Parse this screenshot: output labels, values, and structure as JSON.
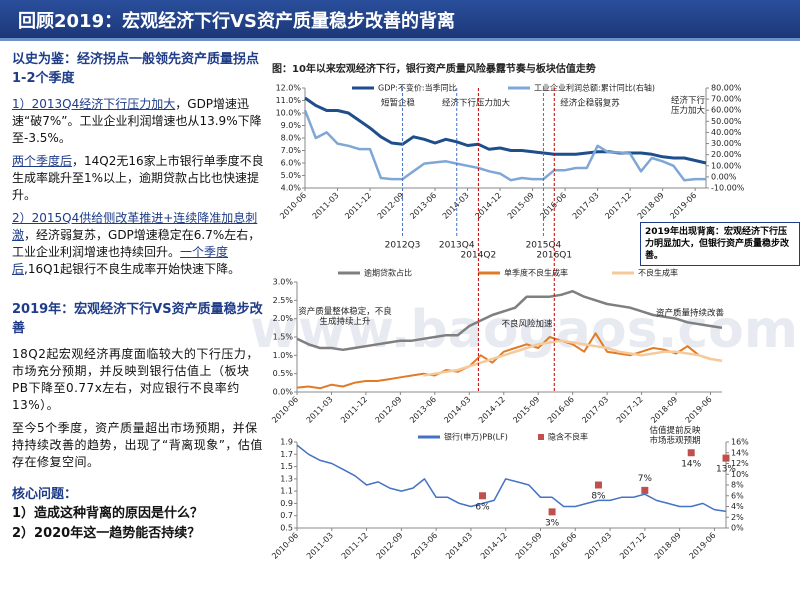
{
  "title": "回顾2019：宏观经济下行VS资产质量稳步改善的背离",
  "left": {
    "heading1": "以史为鉴：经济拐点一般领先资产质量拐点1-2个季度",
    "p1_head": "1）2013Q4经济下行压力加大",
    "p1_body": "，GDP增速迅速“破7%”。工业企业利润增速也从13.9%下降至-3.5%。",
    "p2_head": "两个季度后",
    "p2_body": "，14Q2无16家上市银行单季度不良生成率跳升至1%以上，逾期贷款占比也快速提升。",
    "p3_head": "2）2015Q4供给侧改革推进+连续降准加息刺激",
    "p3_body": "，经济弱复苏，GDP增速稳定在6.7%左右，工业企业利润增速也持续回升。",
    "p3_head2": "一个季度后",
    "p3_body2": ",16Q1起银行不良生成率开始快速下降。",
    "heading2": "2019年：宏观经济下行VS资产质量稳步改善",
    "p4": "18Q2起宏观经济再度面临较大的下行压力，市场充分预期，并反映到银行估值上（板块PB下降至0.77x左右，对应银行不良率约13%）。",
    "p5": "至今5个季度，资产质量超出市场预期，并保持持续改善的趋势，出现了“背离现象”，估值存在修复空间。",
    "heading3": "核心问题：",
    "q1": "1）造成这种背离的原因是什么？",
    "q2": "2）2020年这一趋势能否持续？"
  },
  "watermark": "www.baogaos.com",
  "figure_title": "图：10年以来宏观经济下行，银行资产质量风险暴露节奏与板块估值走势",
  "callout": "2019年出现背离：宏观经济下行压力明显加大，但银行资产质量稳步改善。",
  "charts": [
    {
      "type": "line",
      "categories": [
        "2010-06",
        null,
        null,
        "2011-03",
        null,
        null,
        "2011-12",
        null,
        null,
        "2012-09",
        null,
        null,
        "2013-06",
        null,
        null,
        "2014-03",
        null,
        null,
        "2014-12",
        null,
        null,
        "2015-09",
        null,
        null,
        "2016-06",
        null,
        null,
        "2017-03",
        null,
        null,
        "2017-12",
        null,
        null,
        "2018-09",
        null,
        null,
        "2019-06",
        null
      ],
      "ylim": [
        4,
        12
      ],
      "yticks": [
        {
          "value": 4,
          "label": "4.0%"
        },
        {
          "value": 5,
          "label": "5.0%"
        },
        {
          "value": 6,
          "label": "6.0%"
        },
        {
          "value": 7,
          "label": "7.0%"
        },
        {
          "value": 8,
          "label": "8.0%"
        },
        {
          "value": 9,
          "label": "9.0%"
        },
        {
          "value": 10,
          "label": "10.0%"
        },
        {
          "value": 11,
          "label": "11.0%"
        },
        {
          "value": 12,
          "label": "12.0%"
        }
      ],
      "y2lim": [
        -10,
        80
      ],
      "y2ticks": [
        {
          "value": -10,
          "label": "-10.00%"
        },
        {
          "value": 0,
          "label": "0.00%"
        },
        {
          "value": 10,
          "label": "10.00%"
        },
        {
          "value": 20,
          "label": "20.00%"
        },
        {
          "value": 30,
          "label": "30.00%"
        },
        {
          "value": 40,
          "label": "40.00%"
        },
        {
          "value": 50,
          "label": "50.00%"
        },
        {
          "value": 60,
          "label": "60.00%"
        },
        {
          "value": 70,
          "label": "70.00%"
        },
        {
          "value": 80,
          "label": "80.00%"
        }
      ],
      "series": [
        {
          "name": "GDP:不变价:当季同比",
          "color": "#1f4e8c",
          "width": 3,
          "values": [
            11.2,
            10.6,
            10.2,
            10.2,
            10.0,
            9.4,
            8.8,
            8.1,
            7.6,
            7.5,
            8.1,
            7.9,
            7.6,
            7.9,
            7.7,
            7.4,
            7.5,
            7.1,
            7.2,
            7.0,
            7.0,
            6.9,
            6.8,
            6.7,
            6.7,
            6.7,
            6.8,
            6.9,
            6.9,
            6.8,
            6.8,
            6.8,
            6.7,
            6.5,
            6.4,
            6.4,
            6.2,
            6.0
          ]
        },
        {
          "name": "工业企业利润总额:累计同比(右轴)",
          "color": "#7fa7d6",
          "width": 2.5,
          "axis": "y2",
          "values": [
            60,
            35,
            40,
            30,
            28,
            25,
            25,
            -1,
            -2,
            -2,
            5,
            12,
            13,
            14,
            12,
            10,
            8,
            5,
            3,
            -3,
            -1,
            -2,
            -2,
            6,
            6,
            8,
            8,
            28,
            22,
            22,
            21,
            5,
            17,
            14,
            10,
            -3,
            -2,
            -2
          ]
        }
      ],
      "annotations": [
        "短暂企稳",
        "经济下行压力加大",
        "经济企稳弱复苏",
        "经济下行压力加大"
      ],
      "vlines": [
        {
          "label": "2012Q3",
          "color": "#4472c4"
        },
        {
          "label": "2013Q4",
          "color": "#4472c4"
        },
        {
          "label": "2015Q4",
          "color": "#4472c4"
        },
        {
          "label": "2014Q2",
          "color": "#c00000"
        },
        {
          "label": "2016Q1",
          "color": "#c00000"
        }
      ]
    },
    {
      "type": "line",
      "categories": [
        "2010-06",
        null,
        null,
        "2011-03",
        null,
        null,
        "2011-12",
        null,
        null,
        "2012-09",
        null,
        null,
        "2013-06",
        null,
        null,
        "2014-03",
        null,
        null,
        "2014-12",
        null,
        null,
        "2015-09",
        null,
        null,
        "2016-06",
        null,
        null,
        "2017-03",
        null,
        null,
        "2017-12",
        null,
        null,
        "2018-09",
        null,
        null,
        "2019-06",
        null
      ],
      "ylim": [
        0,
        3
      ],
      "yticks": [
        {
          "value": 0,
          "label": "0.0%"
        },
        {
          "value": 0.5,
          "label": "0.5%"
        },
        {
          "value": 1,
          "label": "1.0%"
        },
        {
          "value": 1.5,
          "label": "1.5%"
        },
        {
          "value": 2,
          "label": "2.0%"
        },
        {
          "value": 2.5,
          "label": "2.5%"
        },
        {
          "value": 3,
          "label": "3.0%"
        }
      ],
      "series": [
        {
          "name": "逾期贷款占比",
          "color": "#7f7f7f",
          "width": 2.5,
          "values": [
            1.45,
            1.3,
            1.2,
            1.2,
            1.15,
            1.2,
            1.25,
            1.3,
            1.35,
            1.4,
            1.4,
            1.45,
            1.5,
            1.55,
            1.55,
            1.8,
            1.95,
            2.1,
            2.2,
            2.3,
            2.6,
            2.6,
            2.6,
            2.65,
            2.75,
            2.6,
            2.5,
            2.4,
            2.35,
            2.3,
            2.2,
            2.1,
            2.05,
            2.0,
            1.9,
            1.85,
            1.8,
            1.75
          ]
        },
        {
          "name": "单季度不良生成率",
          "color": "#e07b28",
          "width": 2,
          "values": [
            0.12,
            0.15,
            0.1,
            0.2,
            0.15,
            0.25,
            0.3,
            0.3,
            0.35,
            0.4,
            0.45,
            0.5,
            0.45,
            0.6,
            0.55,
            0.7,
            1.0,
            0.8,
            1.1,
            1.2,
            1.3,
            1.2,
            1.5,
            1.4,
            1.3,
            1.1,
            1.6,
            1.1,
            1.05,
            1.0,
            1.1,
            1.2,
            1.15,
            1.05,
            1.25,
            1.0,
            0.9,
            0.85
          ]
        },
        {
          "name": "不良生成率",
          "color": "#f6c99a",
          "width": 2.5,
          "values": [
            null,
            null,
            null,
            null,
            null,
            null,
            null,
            null,
            null,
            null,
            null,
            0.45,
            0.5,
            0.55,
            0.6,
            0.7,
            0.8,
            0.9,
            1.0,
            1.1,
            1.2,
            1.3,
            1.35,
            1.4,
            1.35,
            1.3,
            1.25,
            1.2,
            1.1,
            1.05,
            1.0,
            1.05,
            1.1,
            1.1,
            1.05,
            1.0,
            0.9,
            0.85
          ]
        }
      ],
      "annotations": [
        "资产质量整体稳定，不良生成持续上升",
        "不良风险加速",
        "资产质量持续改善"
      ]
    },
    {
      "type": "line",
      "categories": [
        "2010-06",
        null,
        null,
        "2011-03",
        null,
        null,
        "2011-12",
        null,
        null,
        "2012-09",
        null,
        null,
        "2013-06",
        null,
        null,
        "2014-03",
        null,
        null,
        "2014-12",
        null,
        null,
        "2015-09",
        null,
        null,
        "2016-06",
        null,
        null,
        "2017-03",
        null,
        null,
        "2017-12",
        null,
        null,
        "2018-09",
        null,
        null,
        "2019-06",
        null
      ],
      "ylim": [
        0.5,
        1.9
      ],
      "yticks": [
        0.5,
        0.7,
        0.9,
        1.1,
        1.3,
        1.5,
        1.7,
        1.9
      ],
      "y2lim": [
        0,
        16
      ],
      "y2ticks": [
        {
          "value": 0,
          "label": "0%"
        },
        {
          "value": 2,
          "label": "2%"
        },
        {
          "value": 4,
          "label": "4%"
        },
        {
          "value": 6,
          "label": "6%"
        },
        {
          "value": 8,
          "label": "8%"
        },
        {
          "value": 10,
          "label": "10%"
        },
        {
          "value": 12,
          "label": "12%"
        },
        {
          "value": 14,
          "label": "14%"
        },
        {
          "value": 16,
          "label": "16%"
        }
      ],
      "series": [
        {
          "name": "银行(申万)PB(LF)",
          "color": "#4472c4",
          "width": 1.5,
          "values": [
            1.85,
            1.7,
            1.6,
            1.55,
            1.45,
            1.35,
            1.2,
            1.25,
            1.15,
            1.1,
            1.15,
            1.3,
            1.0,
            1.0,
            0.9,
            0.85,
            0.9,
            0.95,
            1.3,
            1.25,
            1.2,
            1.0,
            1.0,
            0.85,
            0.85,
            0.9,
            0.95,
            0.95,
            1.0,
            1.0,
            1.05,
            0.95,
            0.9,
            0.85,
            0.85,
            0.9,
            0.8,
            0.77
          ]
        },
        {
          "name": "隐含不良率",
          "color": "#c0504d",
          "marker": "square",
          "axis": "y2",
          "values": [
            null,
            null,
            null,
            null,
            null,
            null,
            null,
            null,
            null,
            null,
            null,
            null,
            null,
            null,
            null,
            null,
            6,
            null,
            null,
            null,
            null,
            null,
            3,
            null,
            null,
            null,
            8,
            null,
            null,
            null,
            7,
            null,
            null,
            null,
            14,
            null,
            null,
            13
          ],
          "value_labels": [
            null,
            null,
            null,
            null,
            null,
            null,
            null,
            null,
            null,
            null,
            null,
            null,
            null,
            null,
            null,
            null,
            "6%",
            null,
            null,
            null,
            null,
            null,
            "3%",
            null,
            null,
            null,
            "8%",
            null,
            null,
            null,
            "7%",
            null,
            null,
            null,
            "14%",
            null,
            null,
            "13%"
          ]
        }
      ],
      "annotations": [
        "估值提前反映市场悲观预期"
      ]
    }
  ]
}
